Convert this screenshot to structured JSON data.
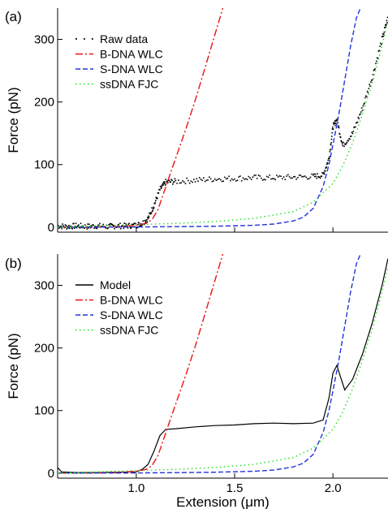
{
  "chart_data": [
    {
      "type": "line",
      "panel_label": "(a)",
      "xlabel": "",
      "ylabel": "Force (pN)",
      "xlim": [
        0.6,
        2.28
      ],
      "ylim": [
        -8,
        350
      ],
      "xticks": [
        1.0,
        1.5,
        2.0
      ],
      "xtick_labels": [
        "",
        "",
        ""
      ],
      "yticks": [
        0,
        100,
        200,
        300
      ],
      "ytick_labels": [
        "0",
        "100",
        "200",
        "300"
      ],
      "legend_position": "top-left",
      "series": [
        {
          "name": "Raw data",
          "style": "dots",
          "color": "#000000",
          "x": [
            0.6,
            0.65,
            0.7,
            0.75,
            0.8,
            0.85,
            0.9,
            0.95,
            1.0,
            1.03,
            1.06,
            1.09,
            1.12,
            1.15,
            1.2,
            1.3,
            1.4,
            1.5,
            1.6,
            1.7,
            1.8,
            1.9,
            1.95,
            1.98,
            2.0,
            2.02,
            2.05,
            2.1,
            2.15,
            2.2,
            2.25,
            2.28
          ],
          "y": [
            2,
            1,
            2,
            1,
            2,
            1,
            2,
            2,
            3,
            6,
            14,
            35,
            60,
            72,
            73,
            75,
            77,
            78,
            79,
            79,
            80,
            81,
            83,
            110,
            160,
            172,
            130,
            150,
            190,
            240,
            300,
            335
          ]
        },
        {
          "name": "B-DNA WLC",
          "style": "dash-dot",
          "color": "#ee1111",
          "x": [
            0.6,
            0.8,
            0.9,
            1.0,
            1.05,
            1.08,
            1.11,
            1.14,
            1.17,
            1.2,
            1.25,
            1.3,
            1.35,
            1.4,
            1.44
          ],
          "y": [
            0,
            0.3,
            0.8,
            3,
            6,
            12,
            28,
            55,
            83,
            110,
            155,
            203,
            255,
            308,
            350
          ]
        },
        {
          "name": "S-DNA WLC",
          "style": "dashed",
          "color": "#2233dd",
          "x": [
            0.6,
            1.0,
            1.2,
            1.4,
            1.6,
            1.7,
            1.8,
            1.85,
            1.9,
            1.95,
            1.98,
            2.0,
            2.03,
            2.06,
            2.09,
            2.12,
            2.14
          ],
          "y": [
            0,
            0.3,
            0.8,
            1.5,
            3,
            5,
            10,
            16,
            30,
            65,
            100,
            132,
            180,
            235,
            290,
            335,
            350
          ]
        },
        {
          "name": "ssDNA FJC",
          "style": "dotted",
          "color": "#22dd22",
          "x": [
            0.6,
            0.8,
            1.0,
            1.2,
            1.4,
            1.6,
            1.8,
            1.9,
            2.0,
            2.05,
            2.1,
            2.15,
            2.2,
            2.25,
            2.28
          ],
          "y": [
            0,
            2,
            4,
            6,
            9,
            14,
            25,
            40,
            70,
            98,
            135,
            180,
            230,
            290,
            330
          ]
        }
      ]
    },
    {
      "type": "line",
      "panel_label": "(b)",
      "xlabel": "Extension (μm)",
      "ylabel": "Force (pN)",
      "xlim": [
        0.6,
        2.28
      ],
      "ylim": [
        -8,
        350
      ],
      "xticks": [
        1.0,
        1.5,
        2.0
      ],
      "xtick_labels": [
        "1.0",
        "1.5",
        "2.0"
      ],
      "yticks": [
        0,
        100,
        200,
        300
      ],
      "ytick_labels": [
        "0",
        "100",
        "200",
        "300"
      ],
      "legend_position": "top-left",
      "series": [
        {
          "name": "Model",
          "style": "solid",
          "color": "#000000",
          "x": [
            0.6,
            0.62,
            0.7,
            0.8,
            0.9,
            1.0,
            1.03,
            1.06,
            1.09,
            1.12,
            1.15,
            1.2,
            1.3,
            1.4,
            1.5,
            1.6,
            1.7,
            1.8,
            1.9,
            1.95,
            1.98,
            2.0,
            2.02,
            2.04,
            2.06,
            2.1,
            2.15,
            2.2,
            2.25,
            2.28
          ],
          "y": [
            9,
            2,
            1,
            1,
            1.5,
            2,
            6,
            14,
            35,
            60,
            70,
            71,
            74,
            76,
            77,
            79,
            80,
            79,
            80,
            85,
            120,
            160,
            172,
            152,
            133,
            150,
            190,
            240,
            300,
            343
          ]
        },
        {
          "name": "B-DNA WLC",
          "style": "dash-dot",
          "color": "#ee1111",
          "x": [
            0.6,
            0.8,
            0.9,
            1.0,
            1.05,
            1.08,
            1.11,
            1.14,
            1.17,
            1.2,
            1.25,
            1.3,
            1.35,
            1.4,
            1.44
          ],
          "y": [
            0,
            0.3,
            0.8,
            3,
            6,
            12,
            28,
            55,
            83,
            110,
            155,
            203,
            255,
            308,
            350
          ]
        },
        {
          "name": "S-DNA WLC",
          "style": "dashed",
          "color": "#2233dd",
          "x": [
            0.6,
            1.0,
            1.2,
            1.4,
            1.6,
            1.7,
            1.8,
            1.85,
            1.9,
            1.95,
            1.98,
            2.0,
            2.03,
            2.06,
            2.09,
            2.12,
            2.14
          ],
          "y": [
            0,
            0.3,
            0.8,
            1.5,
            3,
            5,
            10,
            16,
            30,
            65,
            100,
            132,
            180,
            235,
            290,
            335,
            350
          ]
        },
        {
          "name": "ssDNA FJC",
          "style": "dotted",
          "color": "#22dd22",
          "x": [
            0.6,
            0.8,
            1.0,
            1.2,
            1.4,
            1.6,
            1.8,
            1.9,
            2.0,
            2.05,
            2.1,
            2.15,
            2.2,
            2.25,
            2.28
          ],
          "y": [
            0,
            2,
            4,
            6,
            9,
            14,
            25,
            40,
            70,
            98,
            135,
            180,
            230,
            290,
            330
          ]
        }
      ]
    }
  ]
}
